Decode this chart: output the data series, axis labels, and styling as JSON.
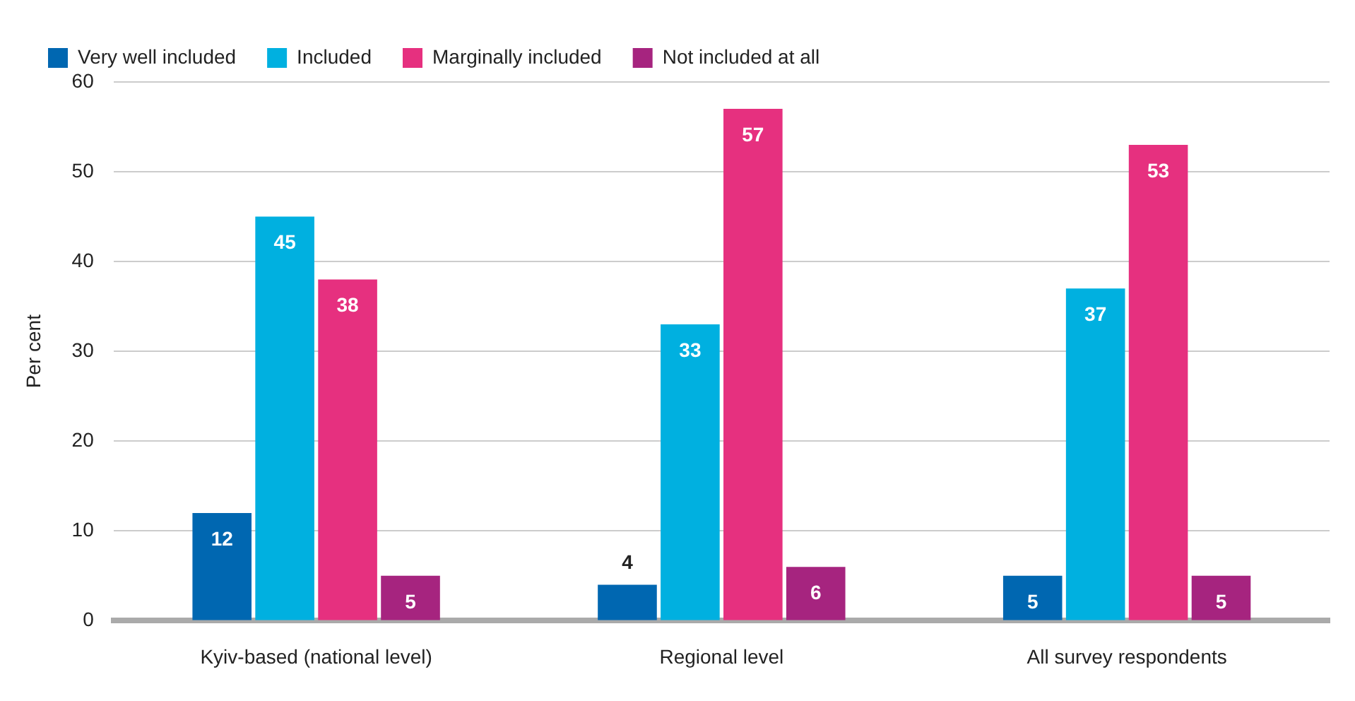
{
  "chart_data": {
    "type": "bar",
    "ylabel": "Per cent",
    "categories": [
      "Kyiv-based (national level)",
      "Regional level",
      "All survey respondents"
    ],
    "series": [
      {
        "name": "Very well included",
        "color": "#0067b1",
        "values": [
          12,
          4,
          5
        ]
      },
      {
        "name": "Included",
        "color": "#00b0e0",
        "values": [
          45,
          33,
          37
        ]
      },
      {
        "name": "Marginally included",
        "color": "#e6307f",
        "values": [
          38,
          57,
          53
        ]
      },
      {
        "name": "Not included at all",
        "color": "#a6247f",
        "values": [
          5,
          6,
          5
        ]
      }
    ],
    "ylim": [
      0,
      60
    ],
    "yticks": [
      0,
      10,
      20,
      30,
      40,
      50,
      60
    ],
    "grid": "y",
    "legend": "top left",
    "data_labels": true
  }
}
